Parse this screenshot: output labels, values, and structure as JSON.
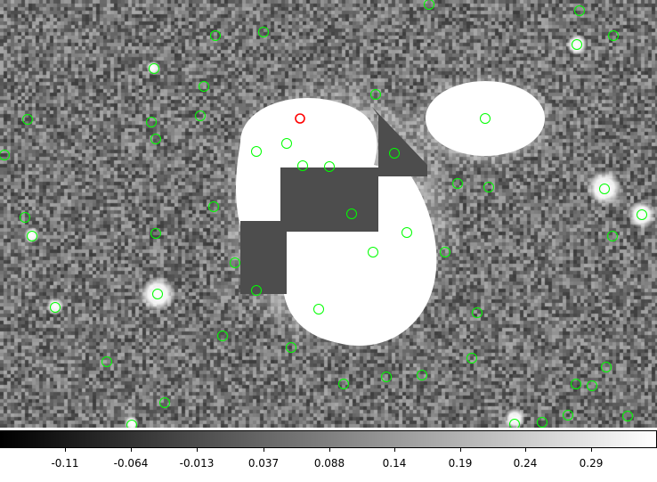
{
  "colors": {
    "marker_green": "#00ff00",
    "marker_red": "#ff0000",
    "background_gray": "#6a6a6a",
    "saturated_white": "#ffffff",
    "masked_gray": "#4d4d4d"
  },
  "colorbar": {
    "ticks": [
      "-0.11",
      "-0.064",
      "-0.013",
      "0.037",
      "0.088",
      "0.14",
      "0.19",
      "0.24",
      "0.29"
    ],
    "gradient_from": "#000000",
    "gradient_to": "#ffffff"
  },
  "markers": {
    "green_count": 62,
    "red_count": 1
  }
}
